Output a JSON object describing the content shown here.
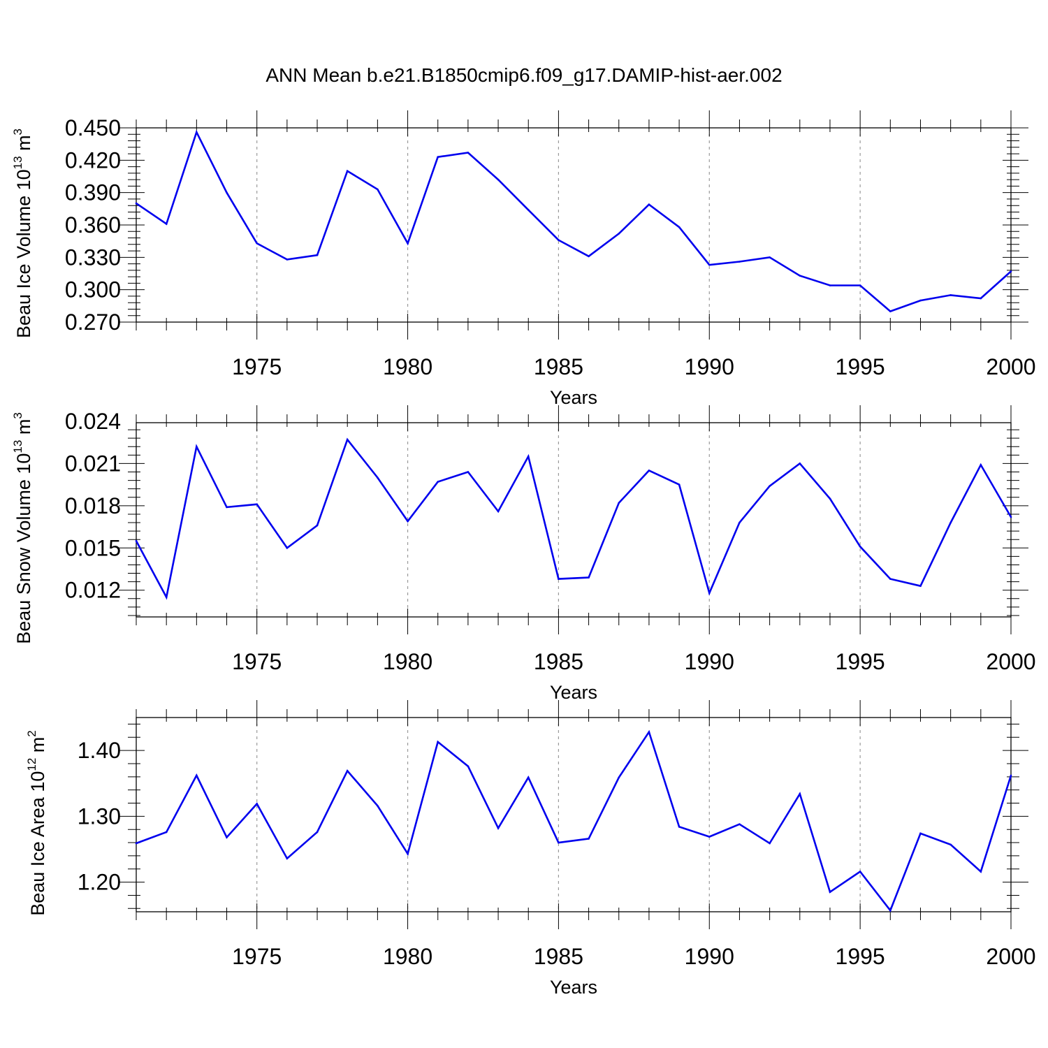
{
  "title": "ANN Mean b.e21.B1850cmip6.f09_g17.DAMIP-hist-aer.002",
  "colors": {
    "line": "#0000ee",
    "axis": "#000000",
    "grid": "#999999"
  },
  "chart_data": [
    {
      "type": "line",
      "ylabel_text": "Beau Ice Volume 10",
      "ylabel_exp": "13",
      "ylabel_unit": "m",
      "ylabel_unit_exp": "3",
      "xlabel": "Years",
      "xlim": [
        1971,
        2000
      ],
      "ylim": [
        0.27,
        0.45
      ],
      "yticks": [
        0.27,
        0.3,
        0.33,
        0.36,
        0.39,
        0.42,
        0.45
      ],
      "ytick_labels": [
        "0.270",
        "0.300",
        "0.330",
        "0.360",
        "0.390",
        "0.420",
        "0.450"
      ],
      "xticks": [
        1975,
        1980,
        1985,
        1990,
        1995,
        2000
      ],
      "xtick_labels": [
        "1975",
        "1980",
        "1985",
        "1990",
        "1995",
        "2000"
      ],
      "x": [
        1971,
        1972,
        1973,
        1974,
        1975,
        1976,
        1977,
        1978,
        1979,
        1980,
        1981,
        1982,
        1983,
        1984,
        1985,
        1986,
        1987,
        1988,
        1989,
        1990,
        1991,
        1992,
        1993,
        1994,
        1995,
        1996,
        1997,
        1998,
        1999,
        2000
      ],
      "values": [
        0.38,
        0.361,
        0.446,
        0.39,
        0.343,
        0.328,
        0.332,
        0.41,
        0.393,
        0.343,
        0.423,
        0.427,
        0.402,
        0.374,
        0.346,
        0.331,
        0.352,
        0.379,
        0.358,
        0.323,
        0.326,
        0.33,
        0.313,
        0.304,
        0.304,
        0.28,
        0.29,
        0.295,
        0.292,
        0.317
      ]
    },
    {
      "type": "line",
      "ylabel_text": "Beau Snow Volume 10",
      "ylabel_exp": "13",
      "ylabel_unit": "m",
      "ylabel_unit_exp": "3",
      "xlabel": "Years",
      "xlim": [
        1971,
        2000
      ],
      "ylim": [
        0.0101,
        0.0239
      ],
      "yticks": [
        0.012,
        0.015,
        0.018,
        0.021,
        0.024
      ],
      "ytick_labels": [
        "0.012",
        "0.015",
        "0.018",
        "0.021",
        "0.024"
      ],
      "xticks": [
        1975,
        1980,
        1985,
        1990,
        1995,
        2000
      ],
      "xtick_labels": [
        "1975",
        "1980",
        "1985",
        "1990",
        "1995",
        "2000"
      ],
      "x": [
        1971,
        1972,
        1973,
        1974,
        1975,
        1976,
        1977,
        1978,
        1979,
        1980,
        1981,
        1982,
        1983,
        1984,
        1985,
        1986,
        1987,
        1988,
        1989,
        1990,
        1991,
        1992,
        1993,
        1994,
        1995,
        1996,
        1997,
        1998,
        1999,
        2000
      ],
      "values": [
        0.0155,
        0.0115,
        0.0222,
        0.0179,
        0.0181,
        0.015,
        0.0166,
        0.0227,
        0.02,
        0.0169,
        0.0197,
        0.0204,
        0.0176,
        0.0215,
        0.0128,
        0.0129,
        0.0182,
        0.0205,
        0.0195,
        0.0118,
        0.0168,
        0.0194,
        0.021,
        0.0185,
        0.0151,
        0.0128,
        0.0123,
        0.0168,
        0.0209,
        0.0172
      ]
    },
    {
      "type": "line",
      "ylabel_text": "Beau Ice Area 10",
      "ylabel_exp": "12",
      "ylabel_unit": "m",
      "ylabel_unit_exp": "2",
      "xlabel": "Years",
      "xlim": [
        1971,
        2000
      ],
      "ylim": [
        1.155,
        1.45
      ],
      "yticks": [
        1.2,
        1.3,
        1.4
      ],
      "ytick_labels": [
        "1.20",
        "1.30",
        "1.40"
      ],
      "xticks": [
        1975,
        1980,
        1985,
        1990,
        1995,
        2000
      ],
      "xtick_labels": [
        "1975",
        "1980",
        "1985",
        "1990",
        "1995",
        "2000"
      ],
      "x": [
        1971,
        1972,
        1973,
        1974,
        1975,
        1976,
        1977,
        1978,
        1979,
        1980,
        1981,
        1982,
        1983,
        1984,
        1985,
        1986,
        1987,
        1988,
        1989,
        1990,
        1991,
        1992,
        1993,
        1994,
        1995,
        1996,
        1997,
        1998,
        1999,
        2000
      ],
      "values": [
        1.259,
        1.276,
        1.362,
        1.268,
        1.319,
        1.236,
        1.276,
        1.369,
        1.316,
        1.243,
        1.413,
        1.376,
        1.282,
        1.359,
        1.26,
        1.266,
        1.359,
        1.428,
        1.284,
        1.269,
        1.288,
        1.259,
        1.334,
        1.185,
        1.216,
        1.157,
        1.274,
        1.257,
        1.216,
        1.362
      ]
    }
  ]
}
